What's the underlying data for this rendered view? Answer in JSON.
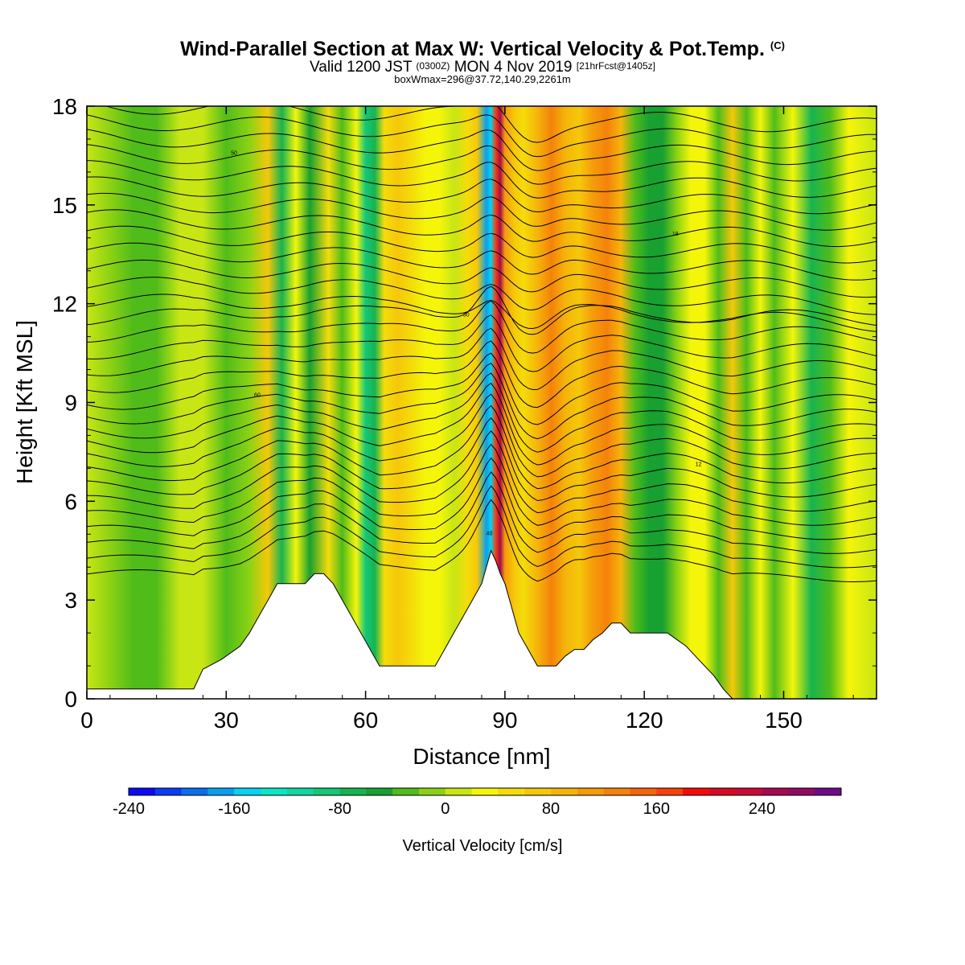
{
  "title": {
    "main": "Wind-Parallel Section at Max W: Vertical Velocity & Pot.Temp.",
    "copyright": "(C)",
    "valid_prefix": "Valid 1200 JST",
    "valid_utc": "(0300Z)",
    "valid_date": "MON 4 Nov 2019",
    "forecast": "[21hrFcst@1405z]",
    "box_max": "boxWmax=296@37.72,140.29,2261m"
  },
  "chart_data": {
    "type": "heatmap",
    "xlabel": "Distance [nm]",
    "ylabel": "Height [Kft MSL]",
    "xlim": [
      0,
      170
    ],
    "ylim": [
      0,
      18
    ],
    "x_ticks": [
      0,
      30,
      60,
      90,
      120,
      150
    ],
    "y_ticks": [
      0,
      3,
      6,
      9,
      12,
      15,
      18
    ],
    "colorbar": {
      "label": "Vertical Velocity [cm/s]",
      "min": -240,
      "max": 300,
      "step": 20,
      "tick_labels": [
        -240,
        -160,
        -80,
        0,
        80,
        160,
        240
      ],
      "colors": [
        "#0a0af5",
        "#0a3cf5",
        "#0a6ef0",
        "#08a0ee",
        "#08d2f0",
        "#0ae6c8",
        "#10d6a0",
        "#14c878",
        "#16b450",
        "#18a030",
        "#50bc1a",
        "#8cd214",
        "#c8e614",
        "#f5f50a",
        "#f5dc0a",
        "#f5c80a",
        "#f5b40a",
        "#f59b0a",
        "#f5820a",
        "#f5640a",
        "#f5410a",
        "#f50a0a",
        "#d70a23",
        "#c80a37",
        "#a50a50",
        "#910a64",
        "#6e0a87"
      ]
    },
    "terrain_kft": {
      "x": [
        0,
        23,
        25,
        29,
        33,
        35,
        37,
        39,
        41,
        43,
        45,
        47,
        49,
        51,
        53,
        55,
        57,
        59,
        61,
        63,
        65,
        67,
        69,
        71,
        73,
        75,
        77,
        79,
        81,
        83,
        85,
        86,
        87,
        88,
        89,
        90,
        91,
        92,
        93,
        95,
        97,
        99,
        101,
        103,
        105,
        107,
        109,
        111,
        113,
        115,
        117,
        119,
        121,
        123,
        125,
        127,
        129,
        131,
        133,
        135,
        137,
        139,
        141,
        143,
        170
      ],
      "h": [
        0.3,
        0.3,
        0.9,
        1.2,
        1.6,
        2.0,
        2.5,
        3.0,
        3.5,
        3.5,
        3.5,
        3.5,
        3.8,
        3.8,
        3.5,
        3.0,
        2.5,
        2.0,
        1.5,
        1.0,
        1.0,
        1.0,
        1.0,
        1.0,
        1.0,
        1.0,
        1.5,
        2.0,
        2.5,
        3.0,
        3.5,
        4.0,
        4.5,
        4.2,
        3.8,
        3.5,
        3.0,
        2.5,
        2.0,
        1.5,
        1.0,
        1.0,
        1.0,
        1.3,
        1.5,
        1.5,
        1.8,
        2.0,
        2.3,
        2.3,
        2.0,
        2.0,
        2.0,
        2.0,
        2.0,
        1.8,
        1.6,
        1.3,
        1.0,
        0.7,
        0.3,
        0.0,
        0.0,
        0.0,
        0.0
      ]
    },
    "vertical_velocity_columns": {
      "x": [
        0,
        5,
        10,
        15,
        20,
        25,
        30,
        35,
        39,
        42,
        45,
        48,
        52,
        55,
        58,
        60,
        62,
        64,
        67,
        70,
        73,
        76,
        79,
        82,
        84,
        86,
        87,
        88,
        89,
        90,
        92,
        94,
        97,
        100,
        103,
        106,
        109,
        112,
        115,
        118,
        121,
        124,
        127,
        130,
        133,
        136,
        139,
        142,
        145,
        148,
        152,
        156,
        160,
        164,
        170
      ],
      "w": [
        10,
        -20,
        -40,
        -30,
        0,
        10,
        -40,
        -20,
        60,
        -80,
        20,
        -50,
        40,
        -30,
        20,
        -90,
        -70,
        40,
        70,
        50,
        30,
        20,
        10,
        40,
        70,
        -180,
        -160,
        170,
        240,
        110,
        60,
        40,
        80,
        120,
        80,
        60,
        110,
        120,
        80,
        -40,
        -60,
        -60,
        -20,
        30,
        20,
        -40,
        60,
        -30,
        20,
        -30,
        20,
        -70,
        -40,
        20,
        0
      ]
    },
    "potential_temperature_contours": {
      "labels": [
        "20",
        "30",
        "40",
        "50",
        "60",
        "14",
        "18",
        "12"
      ]
    }
  }
}
